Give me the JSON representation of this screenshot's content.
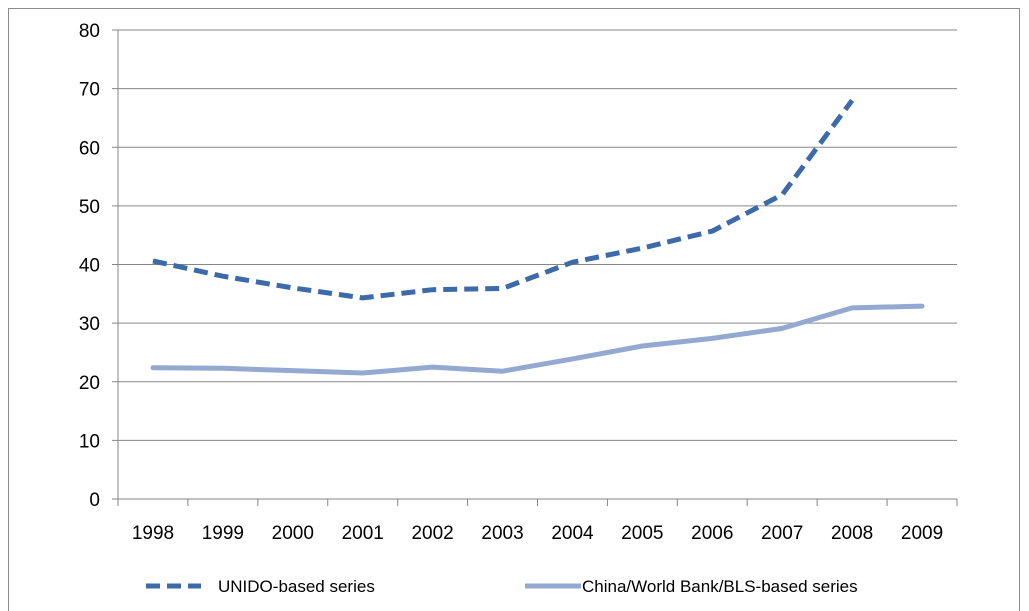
{
  "chart_data": {
    "type": "line",
    "title": "",
    "xlabel": "",
    "ylabel": "",
    "ylim": [
      0,
      80
    ],
    "yticks": [
      "0",
      "10",
      "20",
      "30",
      "40",
      "50",
      "60",
      "70",
      "80"
    ],
    "categories": [
      "1998",
      "1999",
      "2000",
      "2001",
      "2002",
      "2003",
      "2004",
      "2005",
      "2006",
      "2007",
      "2008",
      "2009"
    ],
    "grid": "horizontal",
    "legend_position": "bottom",
    "series": [
      {
        "name": "UNIDO-based series",
        "style": "dashed",
        "color": "#3d6aa8",
        "values": [
          40.6,
          38.0,
          36.0,
          34.3,
          35.7,
          35.9,
          40.4,
          42.8,
          45.7,
          51.9,
          68.0,
          null
        ]
      },
      {
        "name": "China/World Bank/BLS-based series",
        "style": "solid",
        "color": "#93a9d2",
        "values": [
          22.4,
          22.3,
          21.9,
          21.5,
          22.5,
          21.8,
          23.9,
          26.1,
          27.4,
          29.1,
          32.6,
          32.9
        ]
      }
    ]
  }
}
